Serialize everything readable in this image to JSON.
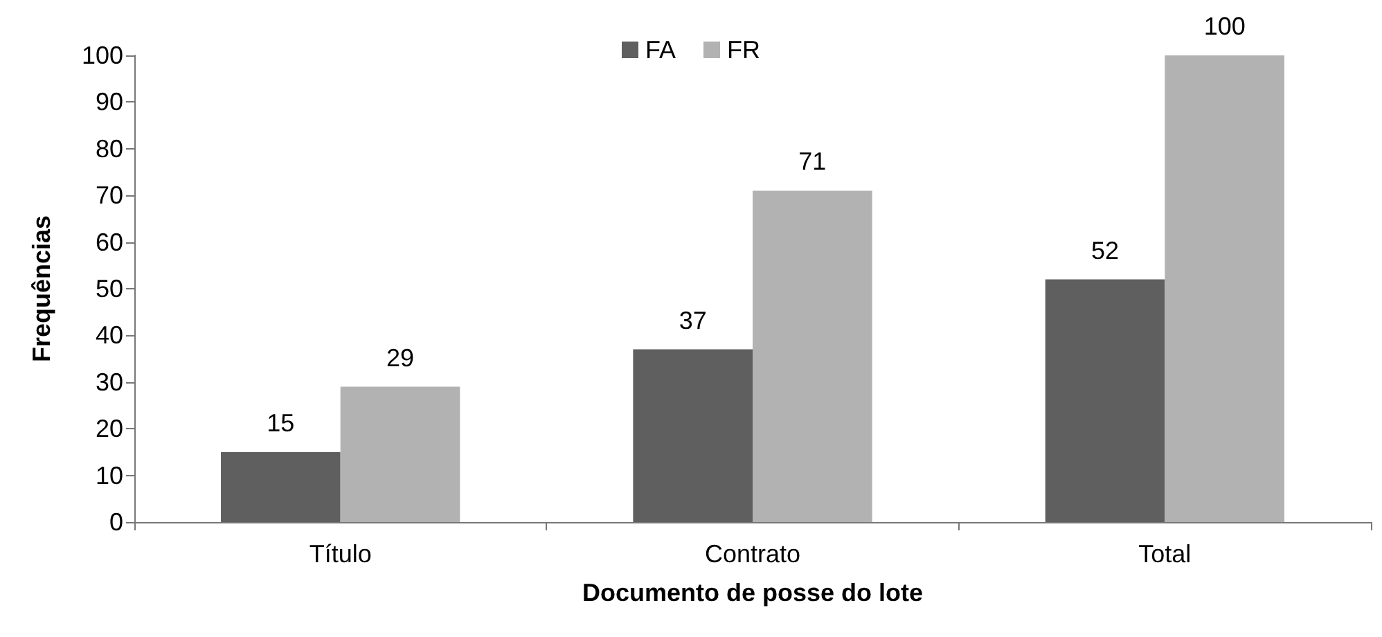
{
  "chart_data": {
    "type": "bar",
    "xlabel": "Documento de posse do lote",
    "ylabel": "Frequências",
    "categories": [
      "Título",
      "Contrato",
      "Total"
    ],
    "series": [
      {
        "name": "FA",
        "color": "#5f5f5f",
        "values": [
          15,
          37,
          52
        ]
      },
      {
        "name": "FR",
        "color": "#b2b2b2",
        "values": [
          29,
          71,
          100
        ]
      }
    ],
    "ylim": [
      0,
      100
    ],
    "yticks": [
      0,
      10,
      20,
      30,
      40,
      50,
      60,
      70,
      80,
      90,
      100
    ],
    "grid": false,
    "legend": "top",
    "data_labels": true
  }
}
